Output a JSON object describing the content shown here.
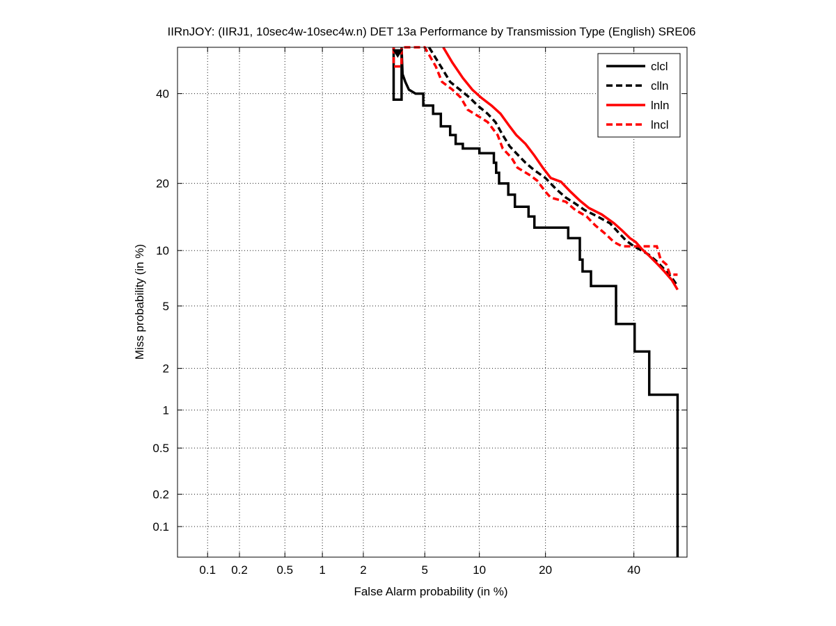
{
  "chart_data": {
    "type": "line",
    "title": "IIRnJOY: (IIRJ1, 10sec4w-10sec4w.n) DET 13a Performance by Transmission Type (English) SRE06",
    "xlabel": "False Alarm probability (in %)",
    "ylabel": "Miss probability (in %)",
    "x_scale": "normal-deviate",
    "y_scale": "normal-deviate",
    "xlim": [
      0.05,
      54
    ],
    "ylim": [
      0.05,
      52
    ],
    "xticks": [
      0.1,
      0.2,
      0.5,
      1,
      2,
      5,
      10,
      20,
      40
    ],
    "xtick_labels": [
      "0.1",
      "0.2",
      "0.5",
      "1",
      "2",
      "5",
      "10",
      "20",
      "40"
    ],
    "yticks": [
      0.1,
      0.2,
      0.5,
      1,
      2,
      5,
      10,
      20,
      40
    ],
    "ytick_labels": [
      "0.1",
      "0.2",
      "0.5",
      "1",
      "2",
      "5",
      "10",
      "20",
      "40"
    ],
    "grid": true,
    "legend_position": "top-right",
    "series": [
      {
        "name": "clcl",
        "color": "#000000",
        "dash": "solid",
        "points": [
          [
            3.2,
            52
          ],
          [
            3.2,
            38.5
          ],
          [
            3.6,
            38.5
          ],
          [
            3.6,
            52
          ],
          [
            3.65,
            45
          ],
          [
            3.8,
            43
          ],
          [
            4.0,
            41
          ],
          [
            4.4,
            40
          ],
          [
            4.9,
            40
          ],
          [
            4.9,
            37
          ],
          [
            5.6,
            37
          ],
          [
            5.6,
            35
          ],
          [
            6.2,
            35
          ],
          [
            6.2,
            32
          ],
          [
            7.0,
            32
          ],
          [
            7.0,
            30
          ],
          [
            7.5,
            30
          ],
          [
            7.5,
            28
          ],
          [
            8.2,
            28
          ],
          [
            8.2,
            27
          ],
          [
            10.0,
            27
          ],
          [
            10.0,
            26
          ],
          [
            11.8,
            26
          ],
          [
            11.8,
            24
          ],
          [
            12.1,
            24
          ],
          [
            12.1,
            22
          ],
          [
            12.5,
            22
          ],
          [
            12.5,
            20
          ],
          [
            13.8,
            20
          ],
          [
            13.8,
            18
          ],
          [
            14.8,
            18
          ],
          [
            14.8,
            16
          ],
          [
            17.0,
            16
          ],
          [
            17.0,
            14.5
          ],
          [
            18.0,
            14.5
          ],
          [
            18.0,
            12.9
          ],
          [
            24.5,
            12.9
          ],
          [
            24.5,
            11.5
          ],
          [
            27.0,
            11.5
          ],
          [
            27.0,
            9.0
          ],
          [
            27.6,
            9.0
          ],
          [
            27.6,
            7.8
          ],
          [
            29.5,
            7.8
          ],
          [
            29.5,
            6.5
          ],
          [
            35.5,
            6.5
          ],
          [
            35.5,
            3.9
          ],
          [
            40.2,
            3.9
          ],
          [
            40.2,
            2.6
          ],
          [
            44.0,
            2.6
          ],
          [
            44.0,
            1.3
          ],
          [
            51.5,
            1.3
          ],
          [
            51.5,
            0.05
          ]
        ]
      },
      {
        "name": "clln",
        "color": "#000000",
        "dash": "dashed",
        "points": [
          [
            5.3,
            52
          ],
          [
            6.2,
            47
          ],
          [
            7.0,
            43
          ],
          [
            7.9,
            41
          ],
          [
            8.9,
            39
          ],
          [
            9.8,
            37
          ],
          [
            11.0,
            35
          ],
          [
            12.0,
            33
          ],
          [
            13.0,
            30
          ],
          [
            14.0,
            27.5
          ],
          [
            15.0,
            26
          ],
          [
            16.5,
            24
          ],
          [
            18.0,
            22.5
          ],
          [
            20.0,
            21
          ],
          [
            22.0,
            19
          ],
          [
            24.0,
            17.5
          ],
          [
            26.0,
            16.5
          ],
          [
            28.0,
            15.5
          ],
          [
            31.0,
            14.5
          ],
          [
            34.0,
            13.5
          ],
          [
            36.5,
            12
          ],
          [
            38.0,
            11.2
          ],
          [
            40.0,
            10.5
          ],
          [
            42.0,
            10.0
          ],
          [
            44.0,
            9.5
          ],
          [
            46.0,
            8.8
          ],
          [
            48.0,
            8.0
          ],
          [
            50.0,
            7.2
          ],
          [
            51.5,
            6.5
          ]
        ]
      },
      {
        "name": "lnln",
        "color": "#ff0000",
        "dash": "solid",
        "points": [
          [
            6.4,
            52
          ],
          [
            7.2,
            48
          ],
          [
            8.2,
            44
          ],
          [
            9.2,
            41
          ],
          [
            10.2,
            39
          ],
          [
            11.5,
            37
          ],
          [
            12.7,
            35
          ],
          [
            14.0,
            32
          ],
          [
            15.0,
            30
          ],
          [
            16.5,
            28
          ],
          [
            18.0,
            25.5
          ],
          [
            19.5,
            23
          ],
          [
            21.0,
            21
          ],
          [
            23.0,
            20.3
          ],
          [
            25.0,
            18.5
          ],
          [
            27.0,
            17
          ],
          [
            29.0,
            15.8
          ],
          [
            32.0,
            14.8
          ],
          [
            35.0,
            13.5
          ],
          [
            37.0,
            12.5
          ],
          [
            39.0,
            11.5
          ],
          [
            40.5,
            11.0
          ],
          [
            42.0,
            10.2
          ],
          [
            44.0,
            9.4
          ],
          [
            46.0,
            8.6
          ],
          [
            48.0,
            7.8
          ],
          [
            50.0,
            7.0
          ],
          [
            51.5,
            6.2
          ]
        ]
      },
      {
        "name": "lncl",
        "color": "#ff0000",
        "dash": "dashed",
        "points": [
          [
            3.2,
            52
          ],
          [
            3.2,
            47
          ],
          [
            3.6,
            47
          ],
          [
            3.6,
            52
          ],
          [
            5.0,
            52
          ],
          [
            5.8,
            47
          ],
          [
            6.3,
            43
          ],
          [
            7.2,
            41
          ],
          [
            8.0,
            39
          ],
          [
            8.7,
            36
          ],
          [
            9.8,
            34.5
          ],
          [
            11.0,
            33
          ],
          [
            12.3,
            30
          ],
          [
            13.0,
            27
          ],
          [
            14.3,
            25
          ],
          [
            15.2,
            23
          ],
          [
            17.3,
            21.5
          ],
          [
            18.5,
            20.5
          ],
          [
            20.0,
            18.5
          ],
          [
            21.0,
            17.5
          ],
          [
            24.0,
            16.8
          ],
          [
            26.0,
            15.5
          ],
          [
            28.5,
            14.5
          ],
          [
            30.5,
            13.2
          ],
          [
            33.0,
            12.0
          ],
          [
            35.0,
            11.0
          ],
          [
            37.0,
            10.5
          ],
          [
            46.0,
            10.5
          ],
          [
            47.0,
            9.0
          ],
          [
            48.5,
            8.5
          ],
          [
            49.5,
            7.5
          ],
          [
            51.5,
            7.5
          ]
        ]
      }
    ]
  }
}
